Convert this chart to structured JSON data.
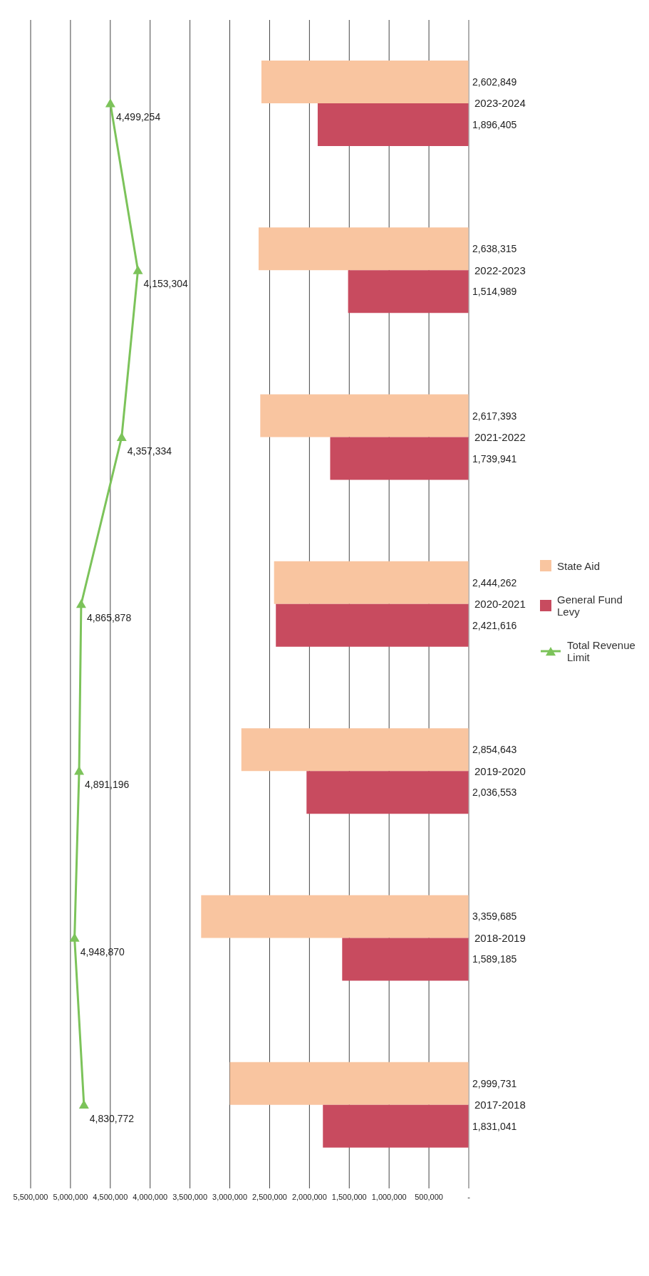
{
  "chart_data": {
    "type": "bar",
    "orientation": "horizontal",
    "categories": [
      "2023-2024",
      "2022-2023",
      "2021-2022",
      "2020-2021",
      "2019-2020",
      "2018-2019",
      "2017-2018"
    ],
    "series": [
      {
        "name": "State Aid",
        "color": "#f9c5a0",
        "values": [
          2602849,
          2638315,
          2617393,
          2444262,
          2854643,
          3359685,
          2999731
        ],
        "value_labels": [
          "2,602,849",
          "2,638,315",
          "2,617,393",
          "2,444,262",
          "2,854,643",
          "3,359,685",
          "2,999,731"
        ]
      },
      {
        "name": "General Fund Levy",
        "color": "#c84b5f",
        "values": [
          1896405,
          1514989,
          1739941,
          2421616,
          2036553,
          1589185,
          1831041
        ],
        "value_labels": [
          "1,896,405",
          "1,514,989",
          "1,739,941",
          "2,421,616",
          "2,036,553",
          "1,589,185",
          "1,831,041"
        ]
      },
      {
        "name": "Total Revenue Limit",
        "type": "line",
        "color": "#7cc35a",
        "marker": "triangle",
        "values": [
          4499254,
          4153304,
          4357334,
          4865878,
          4891196,
          4948870,
          4830772
        ],
        "value_labels": [
          "4,499,254",
          "4,153,304",
          "4,357,334",
          "4,865,878",
          "4,891,196",
          "4,948,870",
          "4,830,772"
        ]
      }
    ],
    "xlim": [
      5500000,
      0
    ],
    "xticks": [
      {
        "value": 0,
        "label": "-"
      },
      {
        "value": 500000,
        "label": "500,000"
      },
      {
        "value": 1000000,
        "label": "1,000,000"
      },
      {
        "value": 1500000,
        "label": "1,500,000"
      },
      {
        "value": 2000000,
        "label": "2,000,000"
      },
      {
        "value": 2500000,
        "label": "2,500,000"
      },
      {
        "value": 3000000,
        "label": "3,000,000"
      },
      {
        "value": 3500000,
        "label": "3,500,000"
      },
      {
        "value": 4000000,
        "label": "4,000,000"
      },
      {
        "value": 4500000,
        "label": "4,500,000"
      },
      {
        "value": 5000000,
        "label": "5,000,000"
      },
      {
        "value": 5500000,
        "label": "5,500,000"
      }
    ],
    "grid": "x",
    "legend": "right"
  }
}
